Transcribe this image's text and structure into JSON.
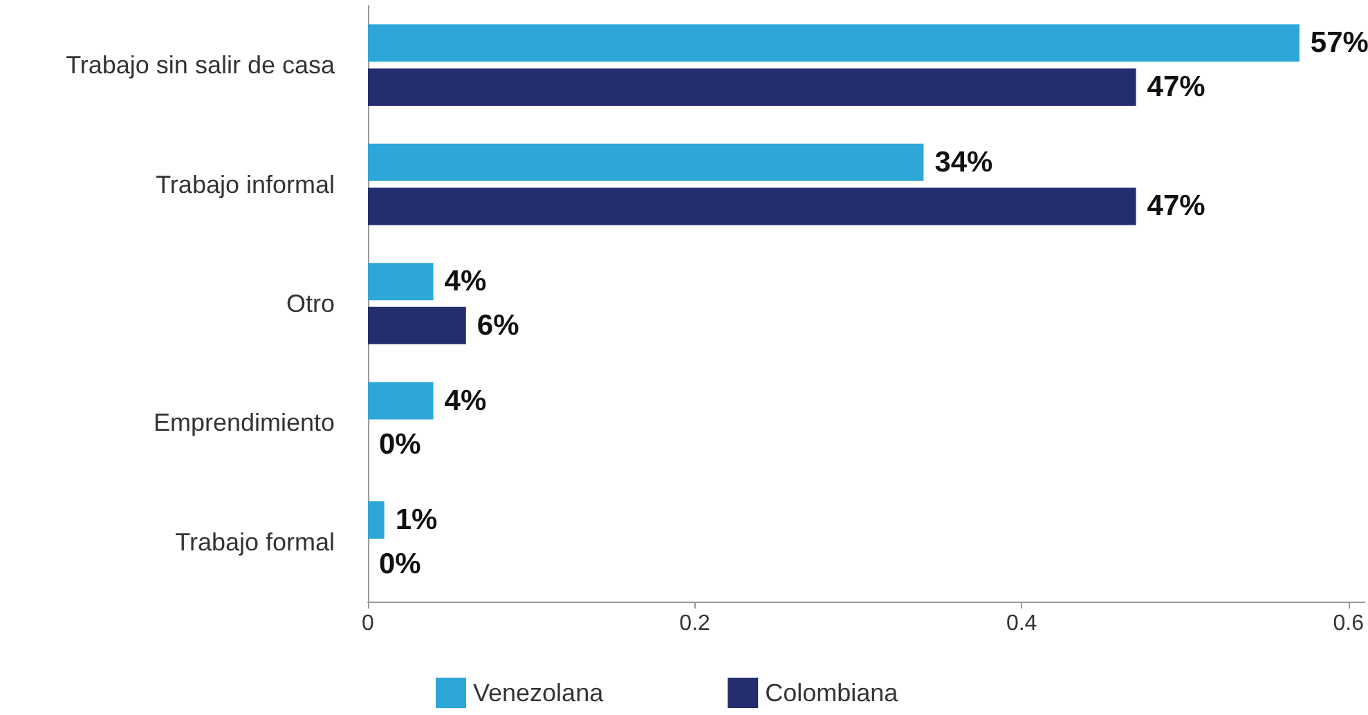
{
  "chart_data": {
    "type": "bar",
    "orientation": "horizontal",
    "categories": [
      "Trabajo sin salir de casa",
      "Trabajo informal",
      "Otro",
      "Emprendimiento",
      "Trabajo formal"
    ],
    "series": [
      {
        "name": "Venezolana",
        "color": "#2ea6d8",
        "values": [
          0.57,
          0.34,
          0.04,
          0.04,
          0.01
        ],
        "value_labels": [
          "57%",
          "34%",
          "4%",
          "4%",
          "1%"
        ]
      },
      {
        "name": "Colombiana",
        "color": "#242e6e",
        "values": [
          0.47,
          0.47,
          0.06,
          0,
          0
        ],
        "value_labels": [
          "47%",
          "47%",
          "6%",
          "0%",
          "0%"
        ]
      }
    ],
    "xlim": [
      0,
      0.61
    ],
    "xticks": [
      0,
      0.2,
      0.4,
      0.6
    ],
    "grid": false,
    "legend": "bottom"
  }
}
